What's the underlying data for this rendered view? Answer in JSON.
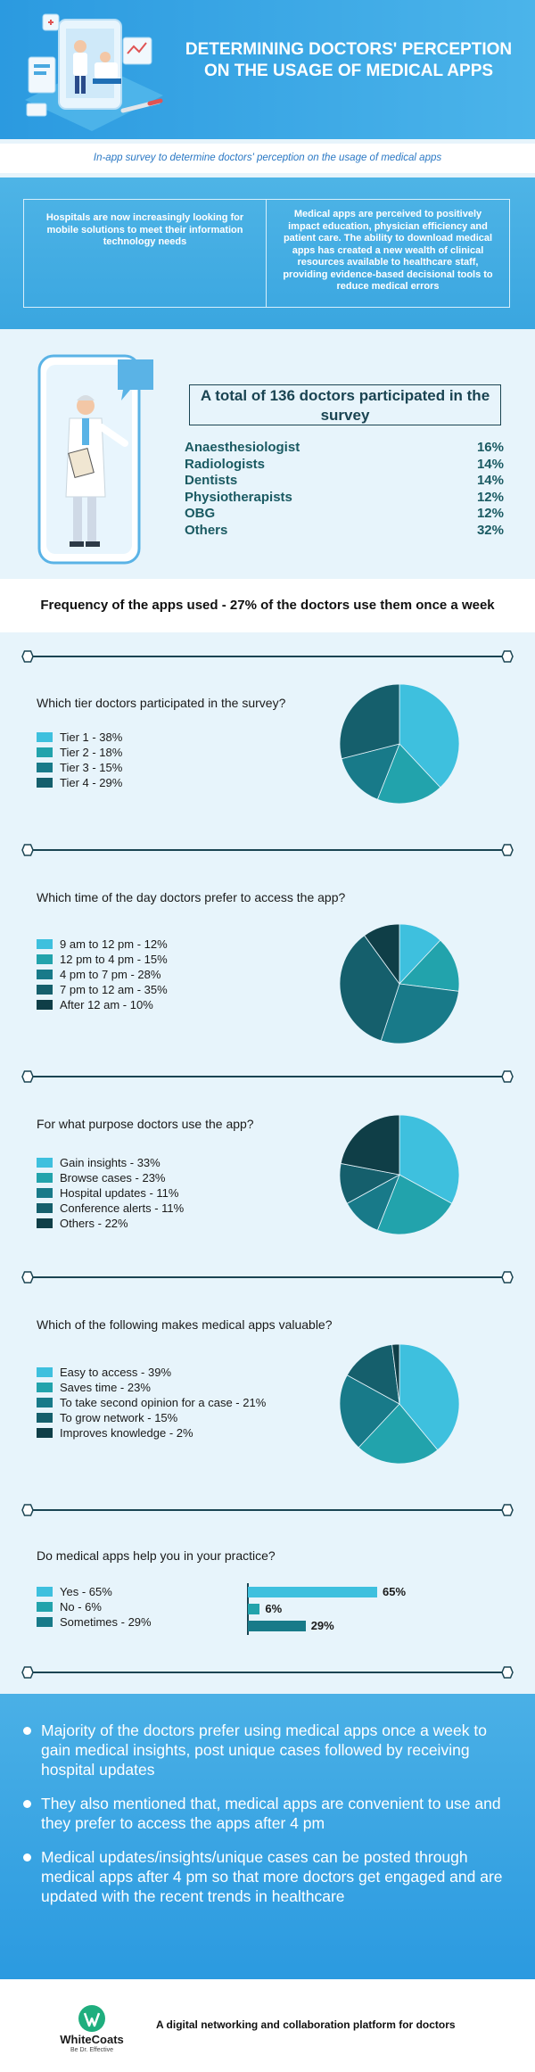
{
  "header": {
    "title": "DETERMINING DOCTORS' PERCEPTION ON THE USAGE OF MEDICAL APPS",
    "subtitle": "In-app survey to determine doctors' perception on the usage of medical apps"
  },
  "intro": {
    "left": "Hospitals are now increasingly looking for mobile solutions to meet their information technology needs",
    "right": "Medical apps are perceived to positively impact education, physician efficiency and patient care. The ability to download medical apps has created a new wealth of clinical resources available to healthcare staff, providing evidence-based decisional tools to reduce medical errors"
  },
  "participants": {
    "total": "A total of 136 doctors participated in the survey",
    "specialties": [
      {
        "name": "Anaesthesiologist",
        "value": "16%"
      },
      {
        "name": "Radiologists",
        "value": "14%"
      },
      {
        "name": "Dentists",
        "value": "14%"
      },
      {
        "name": "Physiotherapists",
        "value": "12%"
      },
      {
        "name": "OBG",
        "value": "12%"
      },
      {
        "name": "Others",
        "value": "32%"
      }
    ]
  },
  "frequency": "Frequency of the apps used - 27% of the doctors use them once a week",
  "colors": [
    "#3ec0de",
    "#22a3ac",
    "#187a89",
    "#155f6c",
    "#0f3e47"
  ],
  "chart_data": [
    {
      "type": "pie",
      "title": "Which tier doctors participated in the survey?",
      "legend": [
        "Tier 1 - 38%",
        "Tier 2 - 18%",
        "Tier 3 - 15%",
        "Tier 4 - 29%"
      ],
      "values": [
        38,
        18,
        15,
        29
      ],
      "colors": [
        "#3ec0de",
        "#22a3ac",
        "#187a89",
        "#155f6c"
      ]
    },
    {
      "type": "pie",
      "title": "Which time of the day doctors prefer to access the app?",
      "legend": [
        "9 am to 12 pm - 12%",
        "12 pm to 4 pm - 15%",
        "4 pm to 7 pm - 28%",
        "7 pm to 12 am - 35%",
        "After 12 am - 10%"
      ],
      "values": [
        12,
        15,
        28,
        35,
        10
      ],
      "colors": [
        "#3ec0de",
        "#22a3ac",
        "#187a89",
        "#155f6c",
        "#0f3e47"
      ]
    },
    {
      "type": "pie",
      "title": "For what purpose doctors use the app?",
      "legend": [
        "Gain insights - 33%",
        "Browse cases - 23%",
        "Hospital updates - 11%",
        "Conference alerts - 11%",
        "Others - 22%"
      ],
      "values": [
        33,
        23,
        11,
        11,
        22
      ],
      "colors": [
        "#3ec0de",
        "#22a3ac",
        "#187a89",
        "#155f6c",
        "#0f3e47"
      ]
    },
    {
      "type": "pie",
      "title": "Which of the following makes medical apps valuable?",
      "legend": [
        "Easy to access - 39%",
        "Saves time - 23%",
        "To take second opinion for a case - 21%",
        "To grow network - 15%",
        "Improves knowledge - 2%"
      ],
      "values": [
        39,
        23,
        21,
        15,
        2
      ],
      "colors": [
        "#3ec0de",
        "#22a3ac",
        "#187a89",
        "#155f6c",
        "#0f3e47"
      ]
    },
    {
      "type": "bar",
      "title": "Do medical apps help you in your practice?",
      "legend": [
        "Yes - 65%",
        "No - 6%",
        "Sometimes - 29%"
      ],
      "categories": [
        "Yes",
        "No",
        "Sometimes"
      ],
      "values": [
        65,
        6,
        29
      ],
      "labels": [
        "65%",
        "6%",
        "29%"
      ],
      "colors": [
        "#3ec0de",
        "#22a3ac",
        "#187a89"
      ]
    }
  ],
  "conclusions": [
    "Majority of the doctors prefer using medical apps once a week to gain medical insights, post unique cases followed by receiving hospital updates",
    "They also mentioned that, medical apps are convenient to use and they prefer to access the apps after 4 pm",
    "Medical updates/insights/unique cases can be posted through medical apps after 4 pm so that more doctors get engaged and are updated with the recent trends in healthcare"
  ],
  "footer": {
    "brand": "WhiteCoats",
    "tagline": "Be Dr. Effective",
    "text": "A digital networking and collaboration platform for doctors"
  }
}
